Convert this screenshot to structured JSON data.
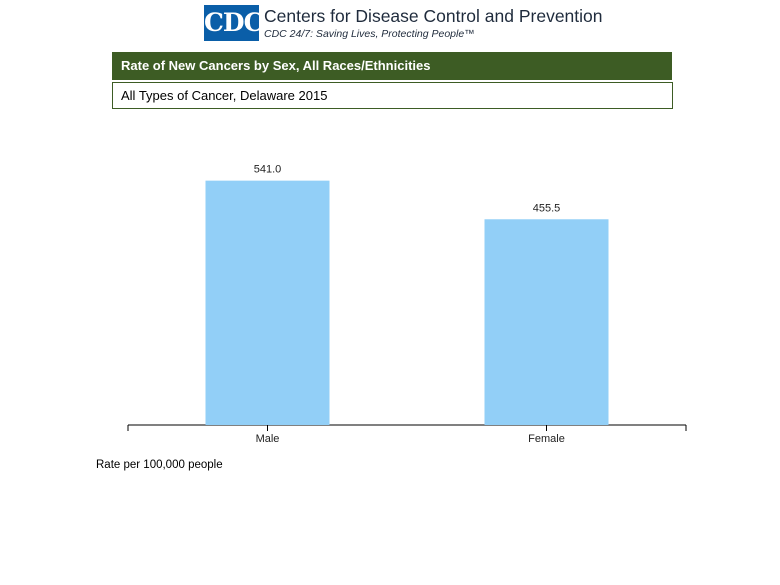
{
  "header": {
    "logo_text": "CDC",
    "org_name": "Centers for Disease Control and Prevention",
    "tagline": "CDC 24/7: Saving Lives, Protecting People™"
  },
  "title": "Rate of New Cancers by Sex, All Races/Ethnicities",
  "subtitle": "All Types of Cancer, Delaware 2015",
  "footnote": "Rate per 100,000 people",
  "colors": {
    "title_bar": "#3d5c24",
    "bar": "#92cff7",
    "logo": "#0a5ea8"
  },
  "chart_data": {
    "type": "bar",
    "categories": [
      "Male",
      "Female"
    ],
    "values": [
      541.0,
      455.5
    ],
    "data_labels": [
      "541.0",
      "455.5"
    ],
    "title": "Rate of New Cancers by Sex, All Races/Ethnicities",
    "xlabel": "",
    "ylabel": "",
    "ylim": [
      0,
      600
    ],
    "grid": false,
    "legend": "none"
  }
}
